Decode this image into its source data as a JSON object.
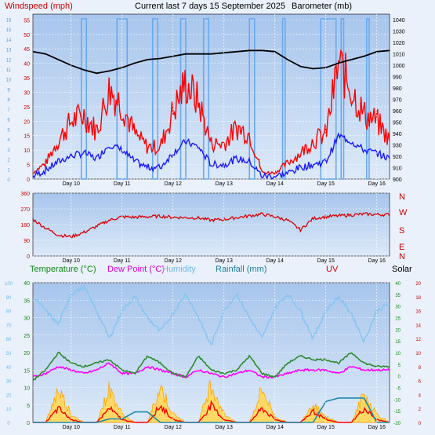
{
  "header": {
    "windspeed_label": "Windspeed (mph)",
    "title": "Current last 7 days 15 September 2025",
    "barometer_label": "Barometer (mb)"
  },
  "bottom_legend": {
    "temperature": "Temperature (°C)",
    "dew_point": "Dew Point (°C)",
    "humidity": "Humidity",
    "rainfall": "Rainfall (mm)",
    "uv": "UV",
    "solar": "Solar"
  },
  "days": [
    "Day 10",
    "Day 11",
    "Day 12",
    "Day 13",
    "Day 14",
    "Day 15",
    "Day 16"
  ],
  "colors": {
    "wind": "#ff0000",
    "wind_avg": "#1a1aff",
    "pressure": "#000000",
    "wind_bars": "#6aa9ee",
    "direction": "#dd0000",
    "temperature": "#2e8b2e",
    "dew_point": "#ff00ff",
    "humidity": "#87c6f0",
    "rainfall": "#1e8aa8",
    "solar": "#ffa500",
    "uv": "#ff0000"
  },
  "chart_data": [
    {
      "type": "line",
      "name": "wind-and-pressure",
      "x": [
        0,
        0.25,
        0.5,
        0.75,
        1,
        1.25,
        1.5,
        1.75,
        2,
        2.25,
        2.5,
        2.75,
        3,
        3.25,
        3.5,
        3.75,
        4,
        4.25,
        4.5,
        4.75,
        5,
        5.25,
        5.5,
        5.75,
        6,
        6.25,
        6.5,
        6.75,
        7
      ],
      "xlim": [
        0,
        7
      ],
      "y_left_label": "Windspeed (mph)",
      "y_left_ticks": [
        0,
        5,
        10,
        15,
        20,
        25,
        30,
        35,
        40,
        45,
        50,
        55
      ],
      "y_left_ticks_alt": [
        0,
        1,
        2,
        3,
        4,
        5,
        6,
        7,
        8,
        9,
        10,
        11,
        12,
        13,
        14,
        15,
        16
      ],
      "ylim_left": [
        0,
        57
      ],
      "y_right_label": "Barometer (mb)",
      "y_right_ticks": [
        900,
        910,
        920,
        930,
        940,
        950,
        960,
        970,
        980,
        990,
        1000,
        1010,
        1020,
        1030,
        1040
      ],
      "ylim_right": [
        900,
        1045
      ],
      "series": [
        {
          "values": [
            2,
            5,
            12,
            18,
            20,
            15,
            28,
            23,
            14,
            10,
            10,
            21,
            30,
            24,
            11,
            11,
            16,
            14,
            2,
            2,
            5,
            8,
            12,
            14,
            36,
            28,
            20,
            18,
            12
          ]
        },
        {
          "values": [
            1,
            3,
            6,
            8,
            9,
            7,
            12,
            10,
            6,
            4,
            4,
            9,
            13,
            11,
            5,
            5,
            7,
            6,
            1,
            1,
            2,
            4,
            5,
            6,
            15,
            13,
            10,
            9,
            7
          ]
        },
        {
          "values": [
            1012,
            1010,
            1005,
            1000,
            996,
            993,
            995,
            998,
            1002,
            1005,
            1006,
            1008,
            1010,
            1010,
            1010,
            1011,
            1012,
            1013,
            1013,
            1012,
            1005,
            999,
            997,
            998,
            1002,
            1005,
            1008,
            1012,
            1013
          ]
        }
      ],
      "wind_bar_intervals": [
        [
          0.95,
          1.05
        ],
        [
          1.65,
          1.85
        ],
        [
          2.35,
          2.45
        ],
        [
          2.9,
          3.0
        ],
        [
          3.35,
          3.45
        ],
        [
          4.25,
          4.35
        ],
        [
          4.9,
          4.95
        ],
        [
          5.65,
          5.95
        ],
        [
          6.05,
          6.1
        ],
        [
          6.55,
          6.6
        ]
      ]
    },
    {
      "type": "line",
      "name": "wind-direction",
      "x": [
        0,
        0.25,
        0.5,
        0.75,
        1,
        1.25,
        1.5,
        1.75,
        2,
        2.25,
        2.5,
        2.75,
        3,
        3.25,
        3.5,
        3.75,
        4,
        4.25,
        4.5,
        4.75,
        5,
        5.25,
        5.5,
        5.75,
        6,
        6.25,
        6.5,
        6.75,
        7
      ],
      "xlim": [
        0,
        7
      ],
      "ylim": [
        0,
        360
      ],
      "y_ticks": [
        0,
        90,
        180,
        270,
        360
      ],
      "compass": [
        "N",
        "W",
        "S",
        "E",
        "N"
      ],
      "values": [
        210,
        160,
        120,
        110,
        135,
        170,
        205,
        225,
        222,
        225,
        228,
        222,
        220,
        218,
        205,
        210,
        220,
        230,
        240,
        225,
        205,
        150,
        215,
        225,
        230,
        235,
        240,
        238,
        236
      ]
    },
    {
      "type": "line",
      "name": "temperature-humidity-rain-solar",
      "x": [
        0,
        0.25,
        0.5,
        0.75,
        1,
        1.25,
        1.5,
        1.75,
        2,
        2.25,
        2.5,
        2.75,
        3,
        3.25,
        3.5,
        3.75,
        4,
        4.25,
        4.5,
        4.75,
        5,
        5.25,
        5.5,
        5.75,
        6,
        6.25,
        6.5,
        6.75,
        7
      ],
      "xlim": [
        0,
        7
      ],
      "y_left_ticks": [
        0,
        5,
        10,
        15,
        20,
        25,
        30,
        35,
        40
      ],
      "ylim_left": [
        0,
        40
      ],
      "y_left_ticks_alt": [
        0,
        10,
        20,
        30,
        40,
        50,
        60,
        70,
        80,
        90,
        100
      ],
      "y_right_ticks": [
        -20,
        -15,
        -10,
        -5,
        0,
        5,
        10,
        15,
        20,
        25,
        30,
        35,
        40
      ],
      "ylim_right": [
        -20,
        40
      ],
      "y_right_ticks_alt": [
        0,
        2,
        4,
        6,
        8,
        10,
        12,
        14,
        16,
        18,
        20
      ],
      "series": [
        {
          "name": "Temperature (°C)",
          "values": [
            12,
            15,
            20,
            17,
            16,
            17,
            18,
            15,
            14,
            19,
            17,
            14,
            13,
            19,
            15,
            14,
            15,
            19,
            14,
            13,
            17,
            19,
            18,
            18,
            17,
            20,
            17,
            16,
            16
          ]
        },
        {
          "name": "Dew Point (°C)",
          "values": [
            13,
            14,
            16,
            15,
            14,
            15,
            17,
            14,
            14,
            16,
            15,
            14,
            13,
            15,
            14,
            13,
            14,
            15,
            13,
            13,
            14,
            15,
            15,
            15,
            14,
            16,
            15,
            15,
            15
          ]
        },
        {
          "name": "Humidity",
          "values": [
            90,
            80,
            70,
            92,
            97,
            80,
            60,
            80,
            90,
            75,
            65,
            78,
            92,
            75,
            55,
            80,
            92,
            75,
            60,
            82,
            92,
            80,
            60,
            80,
            90,
            78,
            58,
            80,
            85
          ]
        },
        {
          "name": "Rainfall (mm)",
          "values": [
            0,
            0,
            0,
            0,
            0,
            0,
            1,
            1,
            3,
            3,
            0,
            0,
            0,
            0,
            0,
            0,
            0,
            0,
            0,
            0,
            0,
            0,
            0,
            6,
            7,
            7,
            7,
            0,
            0
          ]
        },
        {
          "name": "Solar",
          "values": [
            0,
            0,
            12,
            3,
            0,
            0,
            12,
            3,
            0,
            0,
            13,
            3,
            0,
            0,
            14,
            3,
            0,
            0,
            12,
            2,
            0,
            0,
            7,
            2,
            0,
            0,
            10,
            3,
            0
          ]
        },
        {
          "name": "UV",
          "values": [
            0,
            0,
            5,
            1,
            0,
            0,
            5,
            1,
            0,
            0,
            6,
            1,
            0,
            0,
            6,
            1,
            0,
            0,
            5,
            1,
            0,
            0,
            4,
            1,
            0,
            0,
            5,
            1,
            0
          ]
        }
      ]
    }
  ]
}
